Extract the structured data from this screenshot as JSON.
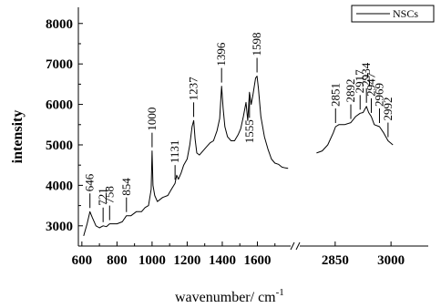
{
  "chart_data": {
    "type": "line",
    "title": "",
    "xlabel": "wavenumber/ cm",
    "xlabel_exponent": "-1",
    "ylabel": "intensity",
    "xlim_segments": [
      [
        580,
        1800
      ],
      [
        2750,
        3100
      ]
    ],
    "ylim": [
      2500,
      8400
    ],
    "x_ticks": [
      600,
      800,
      1000,
      1200,
      1400,
      1600,
      2850,
      3000
    ],
    "x_tick_labels": [
      "600",
      "800",
      "1000",
      "1200",
      "1400",
      "1600",
      "2850",
      "3000"
    ],
    "y_ticks": [
      3000,
      4000,
      5000,
      6000,
      7000,
      8000
    ],
    "y_tick_labels": [
      "3000",
      "4000",
      "5000",
      "6000",
      "7000",
      "8000"
    ],
    "axis_break": true,
    "legend": {
      "position": "top-right",
      "entries": [
        "NSCs"
      ]
    },
    "series": [
      {
        "name": "NSCs",
        "segments": [
          {
            "x": [
              610,
              630,
              646,
              660,
              680,
              700,
              721,
              740,
              758,
              780,
              800,
              830,
              854,
              880,
              910,
              940,
              960,
              980,
              995,
              1000,
              1005,
              1015,
              1030,
              1060,
              1090,
              1110,
              1131,
              1140,
              1150,
              1165,
              1180,
              1200,
              1215,
              1228,
              1237,
              1245,
              1255,
              1270,
              1290,
              1310,
              1330,
              1350,
              1370,
              1385,
              1396,
              1405,
              1415,
              1430,
              1450,
              1470,
              1490,
              1505,
              1520,
              1535,
              1545,
              1555,
              1565,
              1575,
              1590,
              1598,
              1606,
              1620,
              1640,
              1660,
              1680,
              1700,
              1720,
              1740,
              1760,
              1775
            ],
            "y": [
              2750,
              3050,
              3350,
              3200,
              3000,
              2950,
              3000,
              2980,
              3050,
              3050,
              3050,
              3100,
              3250,
              3250,
              3350,
              3350,
              3450,
              3500,
              3900,
              4850,
              4000,
              3750,
              3600,
              3700,
              3750,
              3900,
              4050,
              4250,
              4150,
              4300,
              4500,
              4650,
              5000,
              5450,
              5600,
              5150,
              4800,
              4750,
              4850,
              4950,
              5050,
              5100,
              5350,
              5650,
              6450,
              5900,
              5450,
              5200,
              5100,
              5100,
              5250,
              5400,
              5700,
              6050,
              5600,
              6300,
              6000,
              6250,
              6650,
              6700,
              6400,
              5700,
              5200,
              4900,
              4650,
              4550,
              4520,
              4450,
              4430,
              4420
            ]
          },
          {
            "x": [
              2800,
              2815,
              2830,
              2845,
              2851,
              2860,
              2875,
              2892,
              2905,
              2917,
              2925,
              2934,
              2940,
              2947,
              2955,
              2969,
              2980,
              2992,
              3005
            ],
            "y": [
              4800,
              4850,
              5000,
              5300,
              5450,
              5500,
              5500,
              5550,
              5700,
              5780,
              5800,
              5950,
              5800,
              5700,
              5500,
              5450,
              5300,
              5100,
              5000
            ]
          }
        ]
      }
    ],
    "annotations": [
      {
        "x": 646,
        "text": "646",
        "position": "above"
      },
      {
        "x": 721,
        "text": "721",
        "position": "above"
      },
      {
        "x": 758,
        "text": "758",
        "position": "above"
      },
      {
        "x": 854,
        "text": "854",
        "position": "above"
      },
      {
        "x": 1000,
        "text": "1000",
        "position": "above"
      },
      {
        "x": 1131,
        "text": "1131",
        "position": "above"
      },
      {
        "x": 1237,
        "text": "1237",
        "position": "above"
      },
      {
        "x": 1396,
        "text": "1396",
        "position": "above"
      },
      {
        "x": 1555,
        "text": "1555",
        "position": "below"
      },
      {
        "x": 1598,
        "text": "1598",
        "position": "above"
      },
      {
        "x": 2851,
        "text": "2851",
        "position": "above"
      },
      {
        "x": 2892,
        "text": "2892",
        "position": "above"
      },
      {
        "x": 2917,
        "text": "2917",
        "position": "above"
      },
      {
        "x": 2934,
        "text": "2934",
        "position": "above"
      },
      {
        "x": 2947,
        "text": "2947",
        "position": "above"
      },
      {
        "x": 2969,
        "text": "2969",
        "position": "above"
      },
      {
        "x": 2992,
        "text": "2992",
        "position": "above"
      }
    ],
    "colors": {
      "line": "#000000",
      "axis": "#000000",
      "background": "#ffffff"
    }
  }
}
